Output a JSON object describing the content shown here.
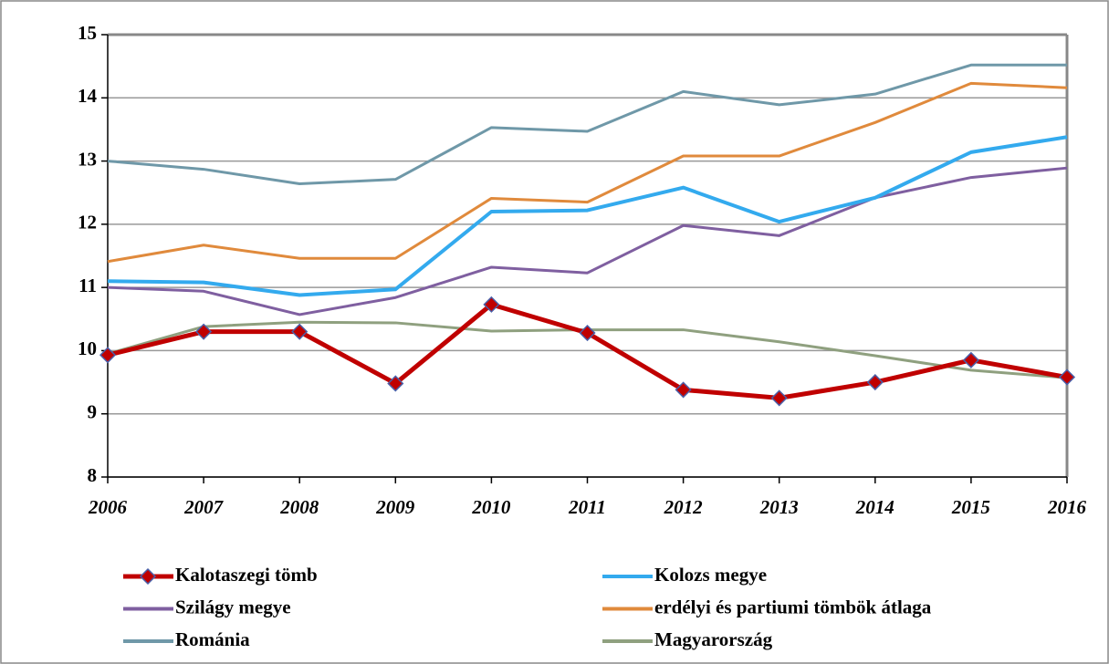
{
  "chart_data": {
    "type": "line",
    "categories": [
      "2006",
      "2007",
      "2008",
      "2009",
      "2010",
      "2011",
      "2012",
      "2013",
      "2014",
      "2015",
      "2016"
    ],
    "ylim": [
      8,
      15
    ],
    "yticks": [
      8,
      9,
      10,
      11,
      12,
      13,
      14,
      15
    ],
    "grid": true,
    "series": [
      {
        "name": "Kalotaszegi tömb",
        "color": "#c00000",
        "marker": "diamond",
        "values": [
          9.93,
          10.3,
          10.3,
          9.48,
          10.73,
          10.28,
          9.38,
          9.25,
          9.5,
          9.85,
          9.58
        ]
      },
      {
        "name": "Kolozs megye",
        "color": "#33aaee",
        "values": [
          11.1,
          11.08,
          10.88,
          10.97,
          12.2,
          12.22,
          12.58,
          12.04,
          12.42,
          13.14,
          13.38
        ]
      },
      {
        "name": "Szilágy megye",
        "color": "#7f5fa0",
        "values": [
          11.0,
          10.94,
          10.57,
          10.84,
          11.32,
          11.23,
          11.98,
          11.82,
          12.42,
          12.74,
          12.89
        ]
      },
      {
        "name": "erdélyi és partiumi tömbök átlaga",
        "color": "#e08a3c",
        "values": [
          11.41,
          11.67,
          11.46,
          11.46,
          12.41,
          12.35,
          13.08,
          13.08,
          13.61,
          14.23,
          14.16
        ]
      },
      {
        "name": "Románia",
        "color": "#6f98a8",
        "values": [
          13.0,
          12.87,
          12.64,
          12.71,
          13.53,
          13.47,
          14.1,
          13.89,
          14.06,
          14.52,
          14.52
        ]
      },
      {
        "name": "Magyarország",
        "color": "#8fa07f",
        "values": [
          9.95,
          10.38,
          10.45,
          10.44,
          10.31,
          10.33,
          10.33,
          10.14,
          9.92,
          9.69,
          9.57
        ]
      }
    ]
  }
}
